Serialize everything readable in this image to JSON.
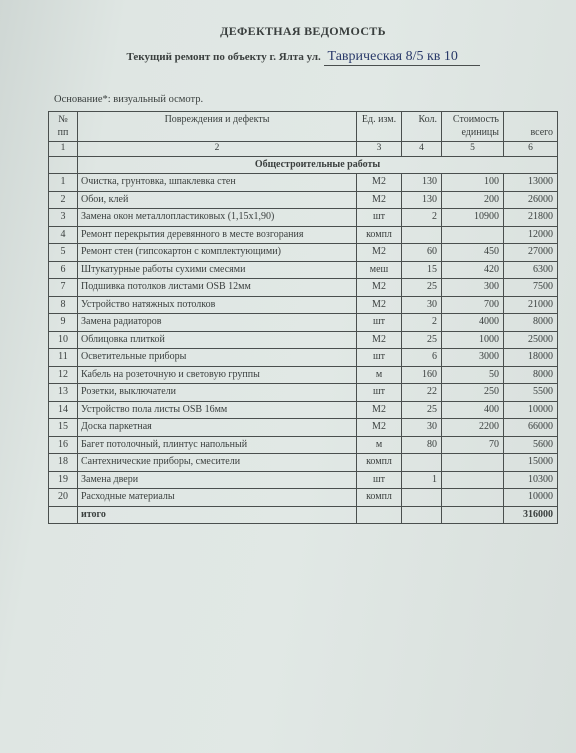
{
  "doc": {
    "title": "ДЕФЕКТНАЯ ВЕДОМОСТЬ",
    "subtitle_prefix": "Текущий ремонт по объекту г. Ялта ул.",
    "address_handwritten": "Таврическая 8/5 кв 10",
    "basis": "Основание*: визуальный осмотр."
  },
  "table": {
    "head": {
      "num": "№ пп",
      "desc": "Повреждения и дефекты",
      "unit": "Ед. изм.",
      "qty": "Кол.",
      "price": "Стоимость единицы",
      "total": "всего"
    },
    "hnum": {
      "c1": "1",
      "c2": "2",
      "c3": "3",
      "c4": "4",
      "c5": "5",
      "c6": "6"
    },
    "section": "Общестроительные работы",
    "rows": [
      {
        "n": "1",
        "d": "Очистка, грунтовка, шпаклевка стен",
        "u": "М2",
        "q": "130",
        "p": "100",
        "t": "13000"
      },
      {
        "n": "2",
        "d": "Обои, клей",
        "u": "М2",
        "q": "130",
        "p": "200",
        "t": "26000"
      },
      {
        "n": "3",
        "d": "Замена окон металлопластиковых (1,15х1,90)",
        "u": "шт",
        "q": "2",
        "p": "10900",
        "t": "21800"
      },
      {
        "n": "4",
        "d": "Ремонт перекрытия деревянного в месте возгорания",
        "u": "компл",
        "q": "",
        "p": "",
        "t": "12000"
      },
      {
        "n": "5",
        "d": "Ремонт стен (гипсокартон с комплектующими)",
        "u": "М2",
        "q": "60",
        "p": "450",
        "t": "27000"
      },
      {
        "n": "6",
        "d": "Штукатурные работы сухими смесями",
        "u": "меш",
        "q": "15",
        "p": "420",
        "t": "6300"
      },
      {
        "n": "7",
        "d": "Подшивка потолков листами OSB 12мм",
        "u": "М2",
        "q": "25",
        "p": "300",
        "t": "7500"
      },
      {
        "n": "8",
        "d": "Устройство натяжных потолков",
        "u": "М2",
        "q": "30",
        "p": "700",
        "t": "21000"
      },
      {
        "n": "9",
        "d": "Замена радиаторов",
        "u": "шт",
        "q": "2",
        "p": "4000",
        "t": "8000"
      },
      {
        "n": "10",
        "d": "Облицовка плиткой",
        "u": "М2",
        "q": "25",
        "p": "1000",
        "t": "25000"
      },
      {
        "n": "11",
        "d": "Осветительные приборы",
        "u": "шт",
        "q": "6",
        "p": "3000",
        "t": "18000"
      },
      {
        "n": "12",
        "d": "Кабель на розеточную и световую группы",
        "u": "м",
        "q": "160",
        "p": "50",
        "t": "8000"
      },
      {
        "n": "13",
        "d": "Розетки, выключатели",
        "u": "шт",
        "q": "22",
        "p": "250",
        "t": "5500"
      },
      {
        "n": "14",
        "d": "Устройство пола листы OSB 16мм",
        "u": "М2",
        "q": "25",
        "p": "400",
        "t": "10000"
      },
      {
        "n": "15",
        "d": "Доска паркетная",
        "u": "М2",
        "q": "30",
        "p": "2200",
        "t": "66000"
      },
      {
        "n": "16",
        "d": "Багет потолочный, плинтус напольный",
        "u": "м",
        "q": "80",
        "p": "70",
        "t": "5600"
      },
      {
        "n": "18",
        "d": "Сантехнические приборы, смесители",
        "u": "компл",
        "q": "",
        "p": "",
        "t": "15000"
      },
      {
        "n": "19",
        "d": "Замена двери",
        "u": "шт",
        "q": "1",
        "p": "",
        "t": "10300"
      },
      {
        "n": "20",
        "d": "Расходные материалы",
        "u": "компл",
        "q": "",
        "p": "",
        "t": "10000"
      }
    ],
    "footer": {
      "label": "итого",
      "total": "316000"
    }
  },
  "style": {
    "bg": "#dbe2e0",
    "text": "#3a3f3e",
    "border": "#4a4f4e",
    "ink": "#2a3a6a",
    "title_size": 12,
    "body_size": 10
  }
}
